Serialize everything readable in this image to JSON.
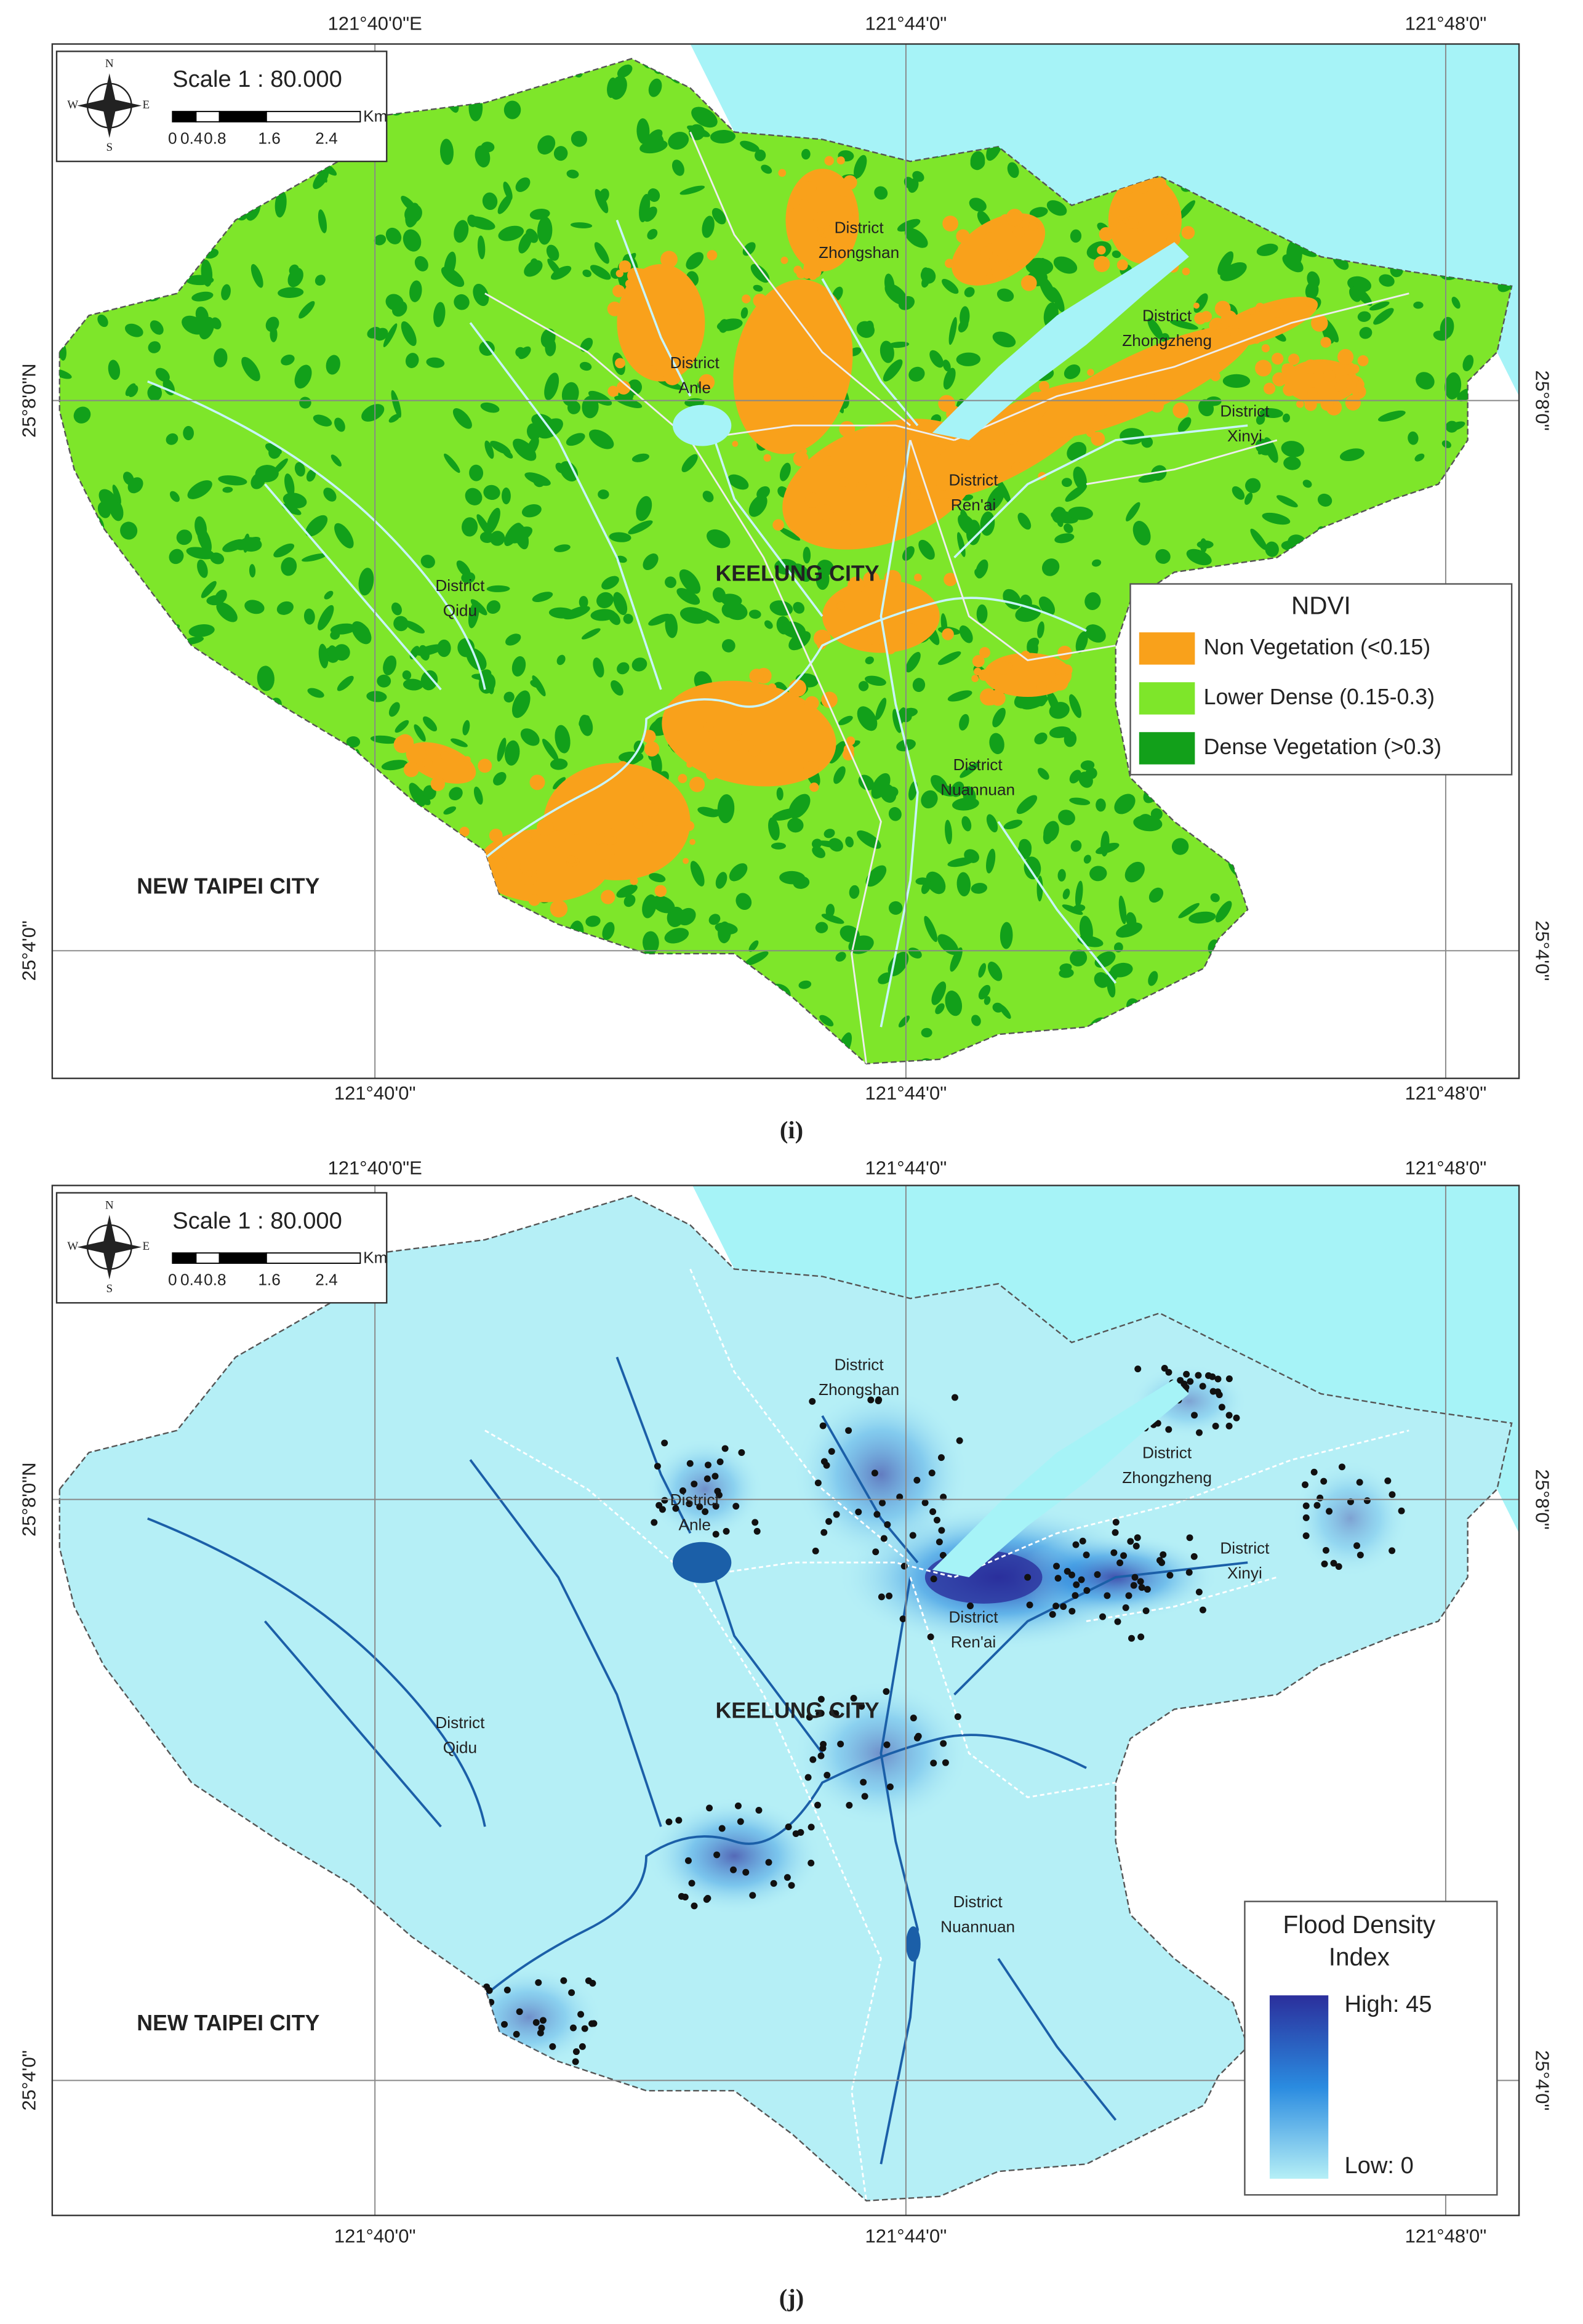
{
  "panels": [
    {
      "caption": "(i)",
      "top_labels": [
        "121°40'0\"E",
        "121°44'0\"",
        "121°48'0\""
      ],
      "bottom_labels": [
        "121°40'0\"",
        "121°44'0\"",
        "121°48'0\""
      ],
      "left_labels": [
        "25°8'0\"N",
        "25°4'0\""
      ],
      "right_labels": [
        "25°8'0\"",
        "25°4'0\""
      ],
      "compass": [
        "N",
        "E",
        "S",
        "W"
      ],
      "scale": {
        "title": "Scale 1 : 80.000",
        "ticks": [
          "0",
          "0.4",
          "0.8",
          "1.6",
          "2.4"
        ],
        "unit": "Km"
      },
      "districts": [
        {
          "lines": [
            "District",
            "Zhongshan"
          ]
        },
        {
          "lines": [
            "District",
            "Anle"
          ]
        },
        {
          "lines": [
            "District",
            "Zhongzheng"
          ]
        },
        {
          "lines": [
            "District",
            "Xinyi"
          ]
        },
        {
          "lines": [
            "District",
            "Ren'ai"
          ]
        },
        {
          "lines": [
            "District",
            "Qidu"
          ]
        },
        {
          "lines": [
            "District",
            "Nuannuan"
          ]
        }
      ],
      "city_labels": [
        "KEELUNG CITY",
        "NEW TAIPEI CITY"
      ],
      "legend": {
        "title": "NDVI",
        "items": [
          {
            "label": "Non Vegetation (<0.15)",
            "color": "#f9a11b"
          },
          {
            "label": "Lower Dense (0.15-0.3)",
            "color": "#7ee62a"
          },
          {
            "label": "Dense Vegetation (>0.3)",
            "color": "#12a01a"
          }
        ]
      }
    },
    {
      "caption": "(j)",
      "top_labels": [
        "121°40'0\"E",
        "121°44'0\"",
        "121°48'0\""
      ],
      "bottom_labels": [
        "121°40'0\"",
        "121°44'0\"",
        "121°48'0\""
      ],
      "left_labels": [
        "25°8'0\"N",
        "25°4'0\""
      ],
      "right_labels": [
        "25°8'0\"",
        "25°4'0\""
      ],
      "compass": [
        "N",
        "E",
        "S",
        "W"
      ],
      "scale": {
        "title": "Scale 1 : 80.000",
        "ticks": [
          "0",
          "0.4",
          "0.8",
          "1.6",
          "2.4"
        ],
        "unit": "Km"
      },
      "districts": [
        {
          "lines": [
            "District",
            "Zhongshan"
          ]
        },
        {
          "lines": [
            "District",
            "Anle"
          ]
        },
        {
          "lines": [
            "District",
            "Zhongzheng"
          ]
        },
        {
          "lines": [
            "District",
            "Xinyi"
          ]
        },
        {
          "lines": [
            "District",
            "Ren'ai"
          ]
        },
        {
          "lines": [
            "District",
            "Qidu"
          ]
        },
        {
          "lines": [
            "District",
            "Nuannuan"
          ]
        }
      ],
      "city_labels": [
        "KEELUNG CITY",
        "NEW TAIPEI CITY"
      ],
      "legend": {
        "title_lines": [
          "Flood Density",
          "Index"
        ],
        "high": "High: 45",
        "low": "Low: 0",
        "colors": [
          "#2b2f9c",
          "#2a8be0",
          "#b5eff6"
        ]
      }
    }
  ]
}
